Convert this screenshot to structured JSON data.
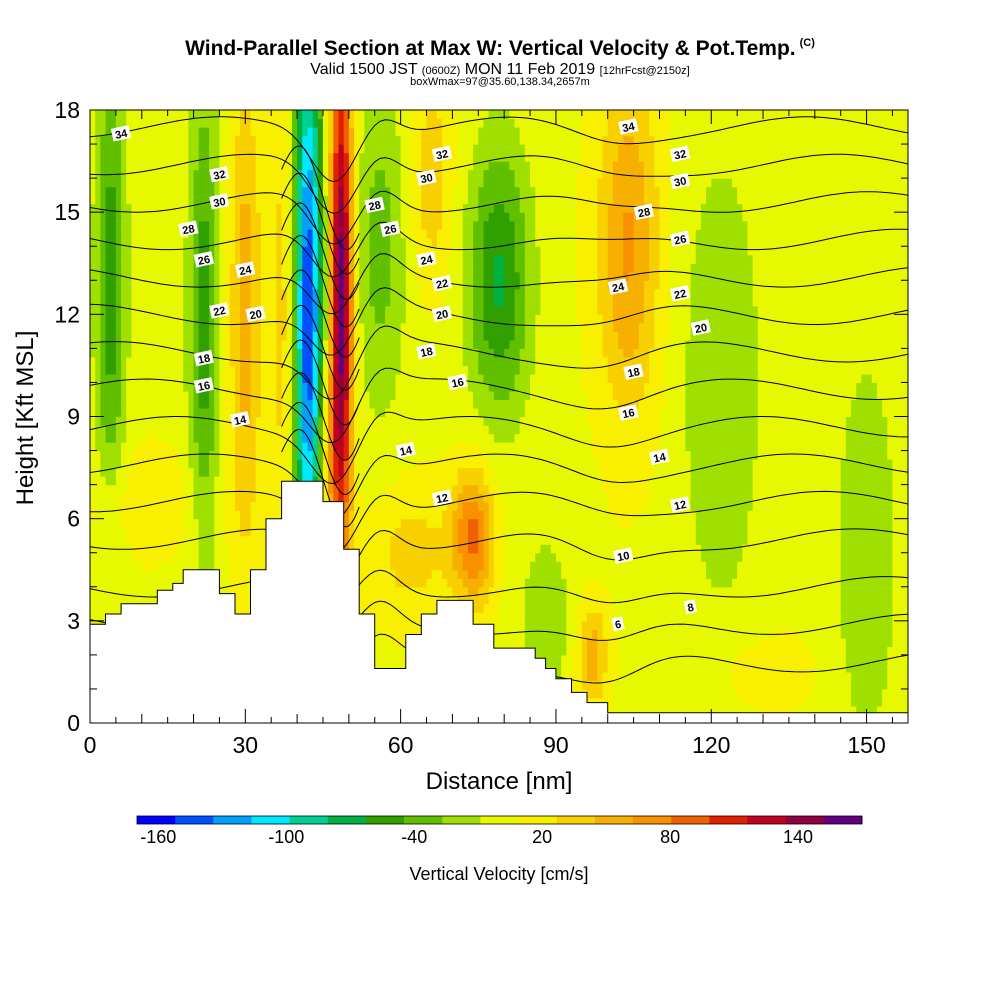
{
  "header": {
    "title": "Wind-Parallel Section at Max W: Vertical Velocity & Pot.Temp.",
    "copyright": "(C)",
    "valid_prefix": "Valid 1500 JST",
    "valid_utc": "(0600Z)",
    "valid_date": "MON 11 Feb 2019",
    "forecast": "[12hrFcst@2150z]",
    "box_info": "boxWmax=97@35.60,138.34,2657m"
  },
  "chart_data": {
    "type": "heatmap",
    "title": "Wind-Parallel Section at Max W: Vertical Velocity & Pot.Temp.",
    "xlabel": "Distance [nm]",
    "ylabel": "Height [Kft MSL]",
    "xlim": [
      0,
      158
    ],
    "ylim": [
      0,
      18
    ],
    "xticks": [
      0,
      30,
      60,
      90,
      120,
      150
    ],
    "yticks": [
      0,
      3,
      6,
      9,
      12,
      15,
      18
    ],
    "colorbar": {
      "title": "Vertical Velocity [cm/s]",
      "tick_labels": [
        "-160",
        "-100",
        "-40",
        "20",
        "80",
        "140"
      ],
      "tick_values": [
        -160,
        -100,
        -40,
        20,
        80,
        140
      ],
      "range": [
        -170,
        170
      ],
      "colors": [
        "#0000ff",
        "#0050ff",
        "#00a0ff",
        "#00e8ff",
        "#00d090",
        "#00b040",
        "#30a000",
        "#60c000",
        "#a0e000",
        "#e8f800",
        "#f8f000",
        "#f8d000",
        "#f8b000",
        "#f89000",
        "#f06000",
        "#e02000",
        "#c00020",
        "#900040",
        "#600080"
      ]
    },
    "terrain": [
      [
        0,
        2.9
      ],
      [
        3,
        2.9
      ],
      [
        3,
        3.2
      ],
      [
        6,
        3.2
      ],
      [
        6,
        3.5
      ],
      [
        13,
        3.5
      ],
      [
        13,
        3.9
      ],
      [
        16,
        3.9
      ],
      [
        16,
        4.1
      ],
      [
        18,
        4.1
      ],
      [
        18,
        4.5
      ],
      [
        25,
        4.5
      ],
      [
        25,
        3.8
      ],
      [
        28,
        3.8
      ],
      [
        28,
        3.2
      ],
      [
        31,
        3.2
      ],
      [
        31,
        4.5
      ],
      [
        34,
        4.5
      ],
      [
        34,
        6.0
      ],
      [
        37,
        6.0
      ],
      [
        37,
        7.1
      ],
      [
        45,
        7.1
      ],
      [
        45,
        6.5
      ],
      [
        49,
        6.5
      ],
      [
        49,
        5.1
      ],
      [
        52,
        5.1
      ],
      [
        52,
        3.2
      ],
      [
        55,
        3.2
      ],
      [
        55,
        1.6
      ],
      [
        61,
        1.6
      ],
      [
        61,
        2.6
      ],
      [
        64,
        2.6
      ],
      [
        64,
        3.2
      ],
      [
        67,
        3.2
      ],
      [
        67,
        3.6
      ],
      [
        74,
        3.6
      ],
      [
        74,
        2.9
      ],
      [
        78,
        2.9
      ],
      [
        78,
        2.2
      ],
      [
        86,
        2.2
      ],
      [
        86,
        1.9
      ],
      [
        88,
        1.9
      ],
      [
        88,
        1.6
      ],
      [
        90,
        1.6
      ],
      [
        90,
        1.3
      ],
      [
        93,
        1.3
      ],
      [
        93,
        0.9
      ],
      [
        96,
        0.9
      ],
      [
        96,
        0.6
      ],
      [
        100,
        0.6
      ],
      [
        100,
        0.3
      ],
      [
        158,
        0.3
      ],
      [
        158,
        0
      ],
      [
        0,
        0
      ]
    ],
    "w_features": [
      {
        "x": 42,
        "y": 12,
        "sx": 3,
        "sy": 9,
        "w": -160
      },
      {
        "x": 48.5,
        "y": 12.5,
        "sx": 2.2,
        "sy": 8,
        "w": 160
      },
      {
        "x": 38,
        "y": 12,
        "sx": 3,
        "sy": 8,
        "w": 40
      },
      {
        "x": 46,
        "y": 8,
        "sx": 2,
        "sy": 2,
        "w": 40
      },
      {
        "x": 4,
        "y": 13,
        "sx": 3,
        "sy": 7,
        "w": -60
      },
      {
        "x": 22,
        "y": 12,
        "sx": 3,
        "sy": 7,
        "w": -60
      },
      {
        "x": 30,
        "y": 12,
        "sx": 3,
        "sy": 7,
        "w": 50
      },
      {
        "x": 56,
        "y": 14,
        "sx": 5,
        "sy": 5,
        "w": -40
      },
      {
        "x": 66,
        "y": 16,
        "sx": 4,
        "sy": 3,
        "w": 35
      },
      {
        "x": 79,
        "y": 13,
        "sx": 6,
        "sy": 4,
        "w": -70
      },
      {
        "x": 104,
        "y": 14,
        "sx": 6,
        "sy": 5,
        "w": 60
      },
      {
        "x": 122,
        "y": 10,
        "sx": 8,
        "sy": 7,
        "w": -30
      },
      {
        "x": 150,
        "y": 5,
        "sx": 6,
        "sy": 6,
        "w": -30
      },
      {
        "x": 74,
        "y": 5.5,
        "sx": 4,
        "sy": 2,
        "w": 80
      },
      {
        "x": 62,
        "y": 5,
        "sx": 8,
        "sy": 2,
        "w": 30
      },
      {
        "x": 97,
        "y": 2,
        "sx": 3,
        "sy": 1.5,
        "w": 50
      },
      {
        "x": 10,
        "y": 6.5,
        "sx": 12,
        "sy": 1.5,
        "w": 20
      },
      {
        "x": 88,
        "y": 3,
        "sx": 5,
        "sy": 2.5,
        "w": -30
      },
      {
        "x": 130,
        "y": 1.5,
        "sx": 10,
        "sy": 1.2,
        "w": 15
      }
    ],
    "w_background": 5,
    "theta_contours": [
      6,
      8,
      10,
      12,
      14,
      16,
      18,
      20,
      22,
      24,
      26,
      28,
      30,
      32,
      34
    ],
    "theta_labels": [
      {
        "text": "34",
        "x": 6,
        "y": 17.3
      },
      {
        "text": "32",
        "x": 25,
        "y": 16.1
      },
      {
        "text": "30",
        "x": 25,
        "y": 15.3
      },
      {
        "text": "28",
        "x": 19,
        "y": 14.5
      },
      {
        "text": "26",
        "x": 22,
        "y": 13.6
      },
      {
        "text": "24",
        "x": 30,
        "y": 13.3
      },
      {
        "text": "22",
        "x": 25,
        "y": 12.1
      },
      {
        "text": "20",
        "x": 32,
        "y": 12.0
      },
      {
        "text": "18",
        "x": 22,
        "y": 10.7
      },
      {
        "text": "16",
        "x": 22,
        "y": 9.9
      },
      {
        "text": "14",
        "x": 29,
        "y": 8.9
      },
      {
        "text": "32",
        "x": 68,
        "y": 16.7
      },
      {
        "text": "30",
        "x": 65,
        "y": 16.0
      },
      {
        "text": "28",
        "x": 55,
        "y": 15.2
      },
      {
        "text": "26",
        "x": 58,
        "y": 14.5
      },
      {
        "text": "24",
        "x": 65,
        "y": 13.6
      },
      {
        "text": "22",
        "x": 68,
        "y": 12.9
      },
      {
        "text": "20",
        "x": 68,
        "y": 12.0
      },
      {
        "text": "18",
        "x": 65,
        "y": 10.9
      },
      {
        "text": "16",
        "x": 71,
        "y": 10.0
      },
      {
        "text": "14",
        "x": 61,
        "y": 8.0
      },
      {
        "text": "12",
        "x": 68,
        "y": 6.6
      },
      {
        "text": "34",
        "x": 104,
        "y": 17.5
      },
      {
        "text": "32",
        "x": 114,
        "y": 16.7
      },
      {
        "text": "30",
        "x": 114,
        "y": 15.9
      },
      {
        "text": "28",
        "x": 107,
        "y": 15.0
      },
      {
        "text": "26",
        "x": 114,
        "y": 14.2
      },
      {
        "text": "24",
        "x": 102,
        "y": 12.8
      },
      {
        "text": "22",
        "x": 114,
        "y": 12.6
      },
      {
        "text": "20",
        "x": 118,
        "y": 11.6
      },
      {
        "text": "18",
        "x": 105,
        "y": 10.3
      },
      {
        "text": "16",
        "x": 104,
        "y": 9.1
      },
      {
        "text": "14",
        "x": 110,
        "y": 7.8
      },
      {
        "text": "12",
        "x": 114,
        "y": 6.4
      },
      {
        "text": "10",
        "x": 103,
        "y": 4.9
      },
      {
        "text": "8",
        "x": 116,
        "y": 3.4
      },
      {
        "text": "6",
        "x": 102,
        "y": 2.9
      }
    ]
  }
}
